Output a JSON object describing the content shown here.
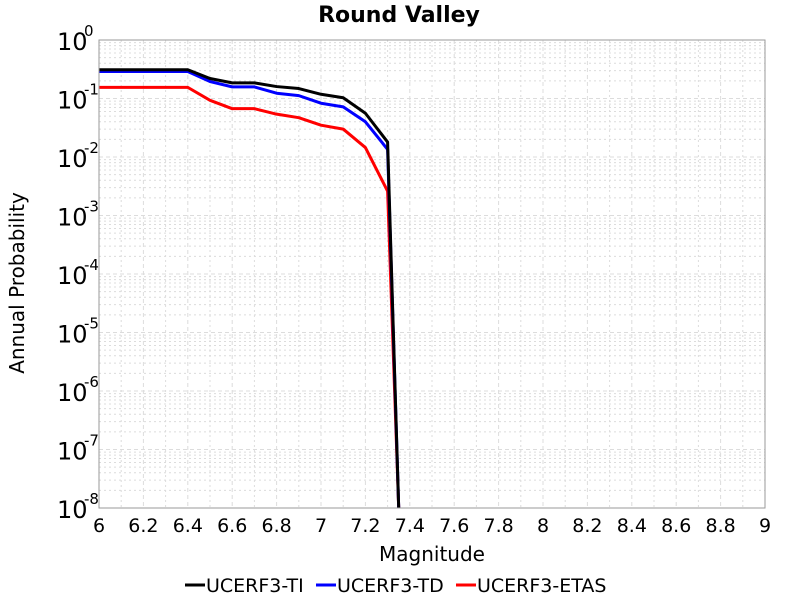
{
  "chart_data": {
    "type": "line",
    "title": "Round Valley",
    "xlabel": "Magnitude",
    "ylabel": "Annual Probability",
    "xlim": [
      6,
      9
    ],
    "ylim": [
      1e-08,
      1
    ],
    "yscale": "log",
    "grid": true,
    "legend_position": "bottom",
    "x_ticks": [
      "6",
      "6.2",
      "6.4",
      "6.6",
      "6.8",
      "7",
      "7.2",
      "7.4",
      "7.6",
      "7.8",
      "8",
      "8.2",
      "8.4",
      "8.6",
      "8.8",
      "9"
    ],
    "y_ticks": [
      {
        "base": "10",
        "exp": "0"
      },
      {
        "base": "10",
        "exp": "-1"
      },
      {
        "base": "10",
        "exp": "-2"
      },
      {
        "base": "10",
        "exp": "-3"
      },
      {
        "base": "10",
        "exp": "-4"
      },
      {
        "base": "10",
        "exp": "-5"
      },
      {
        "base": "10",
        "exp": "-6"
      },
      {
        "base": "10",
        "exp": "-7"
      },
      {
        "base": "10",
        "exp": "-8"
      }
    ],
    "series": [
      {
        "name": "UCERF3-TI",
        "color": "#000000",
        "x": [
          6.0,
          6.1,
          6.2,
          6.3,
          6.4,
          6.5,
          6.6,
          6.7,
          6.8,
          6.9,
          7.0,
          7.1,
          7.2,
          7.3,
          7.35
        ],
        "y": [
          0.31,
          0.31,
          0.31,
          0.31,
          0.31,
          0.22,
          0.185,
          0.185,
          0.16,
          0.148,
          0.118,
          0.103,
          0.056,
          0.018,
          1e-08
        ]
      },
      {
        "name": "UCERF3-TD",
        "color": "#0000ff",
        "x": [
          6.0,
          6.1,
          6.2,
          6.3,
          6.4,
          6.5,
          6.6,
          6.7,
          6.8,
          6.9,
          7.0,
          7.1,
          7.2,
          7.3,
          7.35
        ],
        "y": [
          0.29,
          0.29,
          0.29,
          0.29,
          0.29,
          0.195,
          0.158,
          0.158,
          0.123,
          0.112,
          0.083,
          0.072,
          0.04,
          0.0135,
          1e-08
        ]
      },
      {
        "name": "UCERF3-ETAS",
        "color": "#ff0000",
        "x": [
          6.0,
          6.1,
          6.2,
          6.3,
          6.4,
          6.5,
          6.6,
          6.7,
          6.8,
          6.9,
          7.0,
          7.1,
          7.2,
          7.3,
          7.35
        ],
        "y": [
          0.155,
          0.155,
          0.155,
          0.155,
          0.155,
          0.093,
          0.067,
          0.067,
          0.054,
          0.047,
          0.035,
          0.03,
          0.0145,
          0.0026,
          1e-08
        ]
      }
    ]
  }
}
